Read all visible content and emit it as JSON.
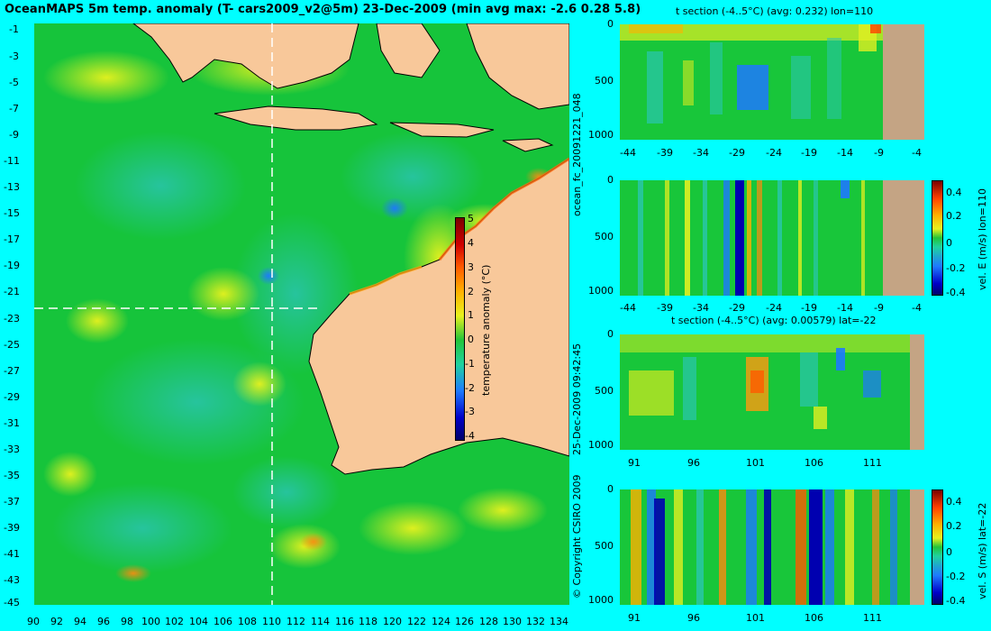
{
  "title": "OceanMAPS 5m temp. anomaly (T- cars2009_v2@5m) 23-Dec-2009 (min avg max: -2.6 0.28 5.8)",
  "map": {
    "lat_ticks": [
      "-1",
      "-3",
      "-5",
      "-7",
      "-9",
      "-11",
      "-13",
      "-15",
      "-17",
      "-19",
      "-21",
      "-23",
      "-25",
      "-27",
      "-29",
      "-31",
      "-33",
      "-35",
      "-37",
      "-39",
      "-41",
      "-43",
      "-45"
    ],
    "lon_ticks": [
      "90",
      "92",
      "94",
      "96",
      "98",
      "100",
      "102",
      "104",
      "106",
      "108",
      "110",
      "112",
      "114",
      "116",
      "118",
      "120",
      "122",
      "124",
      "126",
      "128",
      "130",
      "132",
      "134"
    ],
    "section_lat": -22,
    "section_lon": 110,
    "colorbar": {
      "label": "temperature anomaly (°C)",
      "ticks": [
        "5",
        "4",
        "3",
        "2",
        "1",
        "0",
        "-1",
        "-2",
        "-3",
        "-4"
      ]
    }
  },
  "panels": {
    "p1": {
      "title": "t section (-4..5°C) (avg: 0.232) lon=110",
      "y_ticks": [
        "0",
        "500",
        "1000"
      ],
      "x_ticks": [
        "-44",
        "-39",
        "-34",
        "-29",
        "-24",
        "-19",
        "-14",
        "-9",
        "-4"
      ]
    },
    "p2": {
      "title": "",
      "y_ticks": [
        "0",
        "500",
        "1000"
      ],
      "x_ticks": [
        "-44",
        "-39",
        "-34",
        "-29",
        "-24",
        "-19",
        "-14",
        "-9",
        "-4"
      ],
      "colorbar": {
        "label": "vel. E (m/s) lon=110",
        "ticks": [
          "0.4",
          "0.2",
          "0",
          "-0.2",
          "-0.4"
        ]
      }
    },
    "p3": {
      "title": "t section (-4..5°C) (avg: 0.00579) lat=-22",
      "y_ticks": [
        "0",
        "500",
        "1000"
      ],
      "x_ticks": [
        "91",
        "96",
        "101",
        "106",
        "111"
      ]
    },
    "p4": {
      "title": "",
      "y_ticks": [
        "0",
        "500",
        "1000"
      ],
      "x_ticks": [
        "91",
        "96",
        "101",
        "106",
        "111"
      ],
      "colorbar": {
        "label": "vel. S (m/s) lat=-22",
        "ticks": [
          "0.4",
          "0.2",
          "0",
          "-0.2",
          "-0.4"
        ]
      }
    }
  },
  "side_text": {
    "forecast_id": "ocean_fc_20091221_048",
    "timestamp": "25-Dec-2009 09:42:45",
    "copyright": "© Copyright CSIRO 2009"
  },
  "colors": {
    "background": "#00ffff",
    "ocean_base": "#12c23a",
    "land_fill": "#f8c89a",
    "section_land": "#c4a484"
  }
}
